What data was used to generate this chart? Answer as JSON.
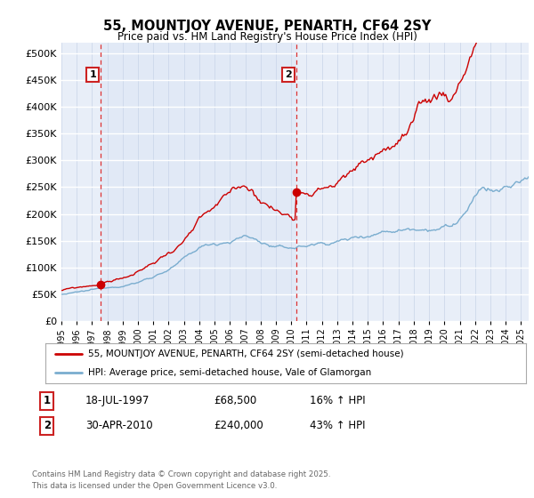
{
  "title": "55, MOUNTJOY AVENUE, PENARTH, CF64 2SY",
  "subtitle": "Price paid vs. HM Land Registry's House Price Index (HPI)",
  "ylabel_ticks": [
    "£0",
    "£50K",
    "£100K",
    "£150K",
    "£200K",
    "£250K",
    "£300K",
    "£350K",
    "£400K",
    "£450K",
    "£500K"
  ],
  "ytick_values": [
    0,
    50000,
    100000,
    150000,
    200000,
    250000,
    300000,
    350000,
    400000,
    450000,
    500000
  ],
  "ylim": [
    0,
    520000
  ],
  "xlim_start": 1995.0,
  "xlim_end": 2025.5,
  "purchase1_x": 1997.54,
  "purchase1_y": 68500,
  "purchase1_label": "1",
  "purchase2_x": 2010.33,
  "purchase2_y": 240000,
  "purchase2_label": "2",
  "line1_color": "#cc0000",
  "line2_color": "#7aadcf",
  "marker_color": "#cc0000",
  "vline_color": "#dd3333",
  "plot_bg_color": "#e8eef8",
  "shaded_bg_color": "#dde6f5",
  "legend_line1": "55, MOUNTJOY AVENUE, PENARTH, CF64 2SY (semi-detached house)",
  "legend_line2": "HPI: Average price, semi-detached house, Vale of Glamorgan",
  "note1_label": "1",
  "note1_date": "18-JUL-1997",
  "note1_price": "£68,500",
  "note1_hpi": "16% ↑ HPI",
  "note2_label": "2",
  "note2_date": "30-APR-2010",
  "note2_price": "£240,000",
  "note2_hpi": "43% ↑ HPI",
  "footer": "Contains HM Land Registry data © Crown copyright and database right 2025.\nThis data is licensed under the Open Government Licence v3.0.",
  "xtick_years": [
    1995,
    1996,
    1997,
    1998,
    1999,
    2000,
    2001,
    2002,
    2003,
    2004,
    2005,
    2006,
    2007,
    2008,
    2009,
    2010,
    2011,
    2012,
    2013,
    2014,
    2015,
    2016,
    2017,
    2018,
    2019,
    2020,
    2021,
    2022,
    2023,
    2024,
    2025
  ]
}
